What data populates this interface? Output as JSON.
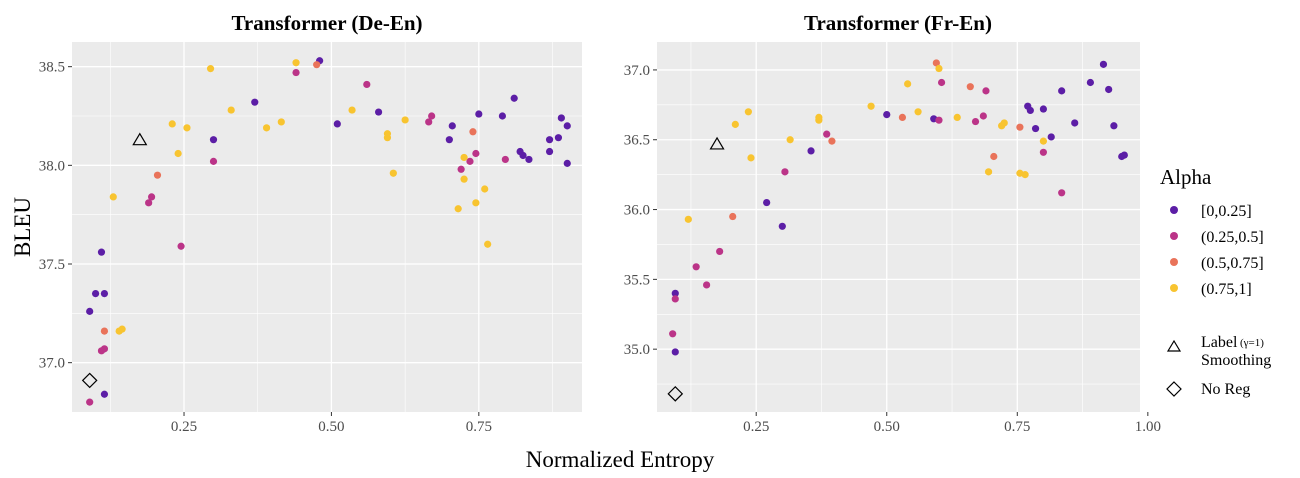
{
  "chart_data": [
    {
      "type": "scatter",
      "title": "Transformer (De-En)",
      "xlim": [
        0.06,
        0.925
      ],
      "ylim": [
        36.75,
        38.625
      ],
      "x_ticks": [
        0.25,
        0.5,
        0.75
      ],
      "x_tick_labels": [
        "0.25",
        "0.50",
        "0.75"
      ],
      "y_ticks": [
        37.0,
        37.5,
        38.0,
        38.5
      ],
      "y_tick_labels": [
        "37.0",
        "37.5",
        "38.0",
        "38.5"
      ],
      "grid": true,
      "series": [
        {
          "name": "[0,0.25]",
          "points": [
            [
              0.09,
              37.26
            ],
            [
              0.1,
              37.35
            ],
            [
              0.11,
              37.56
            ],
            [
              0.115,
              37.35
            ],
            [
              0.115,
              36.84
            ],
            [
              0.3,
              38.13
            ],
            [
              0.37,
              38.32
            ],
            [
              0.48,
              38.53
            ],
            [
              0.51,
              38.21
            ],
            [
              0.58,
              38.27
            ],
            [
              0.7,
              38.13
            ],
            [
              0.705,
              38.2
            ],
            [
              0.75,
              38.26
            ],
            [
              0.79,
              38.25
            ],
            [
              0.81,
              38.34
            ],
            [
              0.82,
              38.07
            ],
            [
              0.825,
              38.05
            ],
            [
              0.835,
              38.03
            ],
            [
              0.87,
              38.13
            ],
            [
              0.87,
              38.07
            ],
            [
              0.885,
              38.14
            ],
            [
              0.89,
              38.24
            ],
            [
              0.9,
              38.2
            ],
            [
              0.9,
              38.01
            ]
          ]
        },
        {
          "name": "(0.25,0.5]",
          "points": [
            [
              0.09,
              36.8
            ],
            [
              0.11,
              37.06
            ],
            [
              0.115,
              37.07
            ],
            [
              0.19,
              37.81
            ],
            [
              0.195,
              37.84
            ],
            [
              0.245,
              37.59
            ],
            [
              0.3,
              38.02
            ],
            [
              0.44,
              38.47
            ],
            [
              0.56,
              38.41
            ],
            [
              0.665,
              38.22
            ],
            [
              0.67,
              38.25
            ],
            [
              0.72,
              37.98
            ],
            [
              0.735,
              38.02
            ],
            [
              0.745,
              38.06
            ],
            [
              0.795,
              38.03
            ]
          ]
        },
        {
          "name": "(0.5,0.75]",
          "points": [
            [
              0.115,
              37.16
            ],
            [
              0.205,
              37.95
            ],
            [
              0.475,
              38.51
            ],
            [
              0.74,
              38.17
            ]
          ]
        },
        {
          "name": "(0.75,1]",
          "points": [
            [
              0.13,
              37.84
            ],
            [
              0.14,
              37.16
            ],
            [
              0.145,
              37.17
            ],
            [
              0.23,
              38.21
            ],
            [
              0.24,
              38.06
            ],
            [
              0.255,
              38.19
            ],
            [
              0.295,
              38.49
            ],
            [
              0.33,
              38.28
            ],
            [
              0.39,
              38.19
            ],
            [
              0.415,
              38.22
            ],
            [
              0.44,
              38.52
            ],
            [
              0.535,
              38.28
            ],
            [
              0.595,
              38.14
            ],
            [
              0.595,
              38.16
            ],
            [
              0.605,
              37.96
            ],
            [
              0.625,
              38.23
            ],
            [
              0.715,
              37.78
            ],
            [
              0.725,
              37.93
            ],
            [
              0.725,
              38.04
            ],
            [
              0.745,
              37.81
            ],
            [
              0.76,
              37.88
            ],
            [
              0.765,
              37.6
            ]
          ]
        }
      ],
      "special_points": [
        {
          "name": "Label Smoothing",
          "marker": "triangle",
          "x": 0.175,
          "y": 38.13
        },
        {
          "name": "No Reg",
          "marker": "diamond",
          "x": 0.09,
          "y": 36.91
        }
      ]
    },
    {
      "type": "scatter",
      "title": "Transformer (Fr-En)",
      "xlim": [
        0.06,
        0.985
      ],
      "ylim": [
        34.55,
        37.2
      ],
      "x_ticks": [
        0.25,
        0.5,
        0.75,
        1.0
      ],
      "x_tick_labels": [
        "0.25",
        "0.50",
        "0.75",
        "1.00"
      ],
      "y_ticks": [
        35.0,
        35.5,
        36.0,
        36.5,
        37.0
      ],
      "y_tick_labels": [
        "35.0",
        "35.5",
        "36.0",
        "36.5",
        "37.0"
      ],
      "grid": true,
      "series": [
        {
          "name": "[0,0.25]",
          "points": [
            [
              0.095,
              35.4
            ],
            [
              0.095,
              34.98
            ],
            [
              0.27,
              36.05
            ],
            [
              0.3,
              35.88
            ],
            [
              0.355,
              36.42
            ],
            [
              0.5,
              36.68
            ],
            [
              0.59,
              36.65
            ],
            [
              0.77,
              36.74
            ],
            [
              0.775,
              36.71
            ],
            [
              0.785,
              36.58
            ],
            [
              0.8,
              36.72
            ],
            [
              0.815,
              36.52
            ],
            [
              0.835,
              36.85
            ],
            [
              0.86,
              36.62
            ],
            [
              0.89,
              36.91
            ],
            [
              0.915,
              37.04
            ],
            [
              0.925,
              36.86
            ],
            [
              0.935,
              36.6
            ],
            [
              0.95,
              36.38
            ],
            [
              0.955,
              36.39
            ]
          ]
        },
        {
          "name": "(0.25,0.5]",
          "points": [
            [
              0.09,
              35.11
            ],
            [
              0.095,
              35.36
            ],
            [
              0.135,
              35.59
            ],
            [
              0.155,
              35.46
            ],
            [
              0.18,
              35.7
            ],
            [
              0.305,
              36.27
            ],
            [
              0.385,
              36.54
            ],
            [
              0.6,
              36.64
            ],
            [
              0.605,
              36.91
            ],
            [
              0.67,
              36.63
            ],
            [
              0.685,
              36.67
            ],
            [
              0.69,
              36.85
            ],
            [
              0.8,
              36.41
            ],
            [
              0.835,
              36.12
            ]
          ]
        },
        {
          "name": "(0.5,0.75]",
          "points": [
            [
              0.205,
              35.95
            ],
            [
              0.395,
              36.49
            ],
            [
              0.53,
              36.66
            ],
            [
              0.595,
              37.05
            ],
            [
              0.66,
              36.88
            ],
            [
              0.705,
              36.38
            ],
            [
              0.755,
              36.59
            ]
          ]
        },
        {
          "name": "(0.75,1]",
          "points": [
            [
              0.12,
              35.93
            ],
            [
              0.21,
              36.61
            ],
            [
              0.235,
              36.7
            ],
            [
              0.24,
              36.37
            ],
            [
              0.315,
              36.5
            ],
            [
              0.37,
              36.64
            ],
            [
              0.37,
              36.66
            ],
            [
              0.47,
              36.74
            ],
            [
              0.54,
              36.9
            ],
            [
              0.56,
              36.7
            ],
            [
              0.6,
              37.01
            ],
            [
              0.635,
              36.66
            ],
            [
              0.695,
              36.27
            ],
            [
              0.72,
              36.6
            ],
            [
              0.725,
              36.62
            ],
            [
              0.755,
              36.26
            ],
            [
              0.765,
              36.25
            ],
            [
              0.8,
              36.49
            ]
          ]
        }
      ],
      "special_points": [
        {
          "name": "Label Smoothing",
          "marker": "triangle",
          "x": 0.175,
          "y": 36.47
        },
        {
          "name": "No Reg",
          "marker": "diamond",
          "x": 0.095,
          "y": 34.68
        }
      ]
    }
  ],
  "axes": {
    "xlabel": "Normalized Entropy",
    "ylabel": "BLEU"
  },
  "legend": {
    "title": "Alpha",
    "placement": "right",
    "entries": [
      {
        "label": "[0,0.25]",
        "color": "#5c1ea6"
      },
      {
        "label": "(0.25,0.5]",
        "color": "#bb3488"
      },
      {
        "label": "(0.5,0.75]",
        "color": "#e9735a"
      },
      {
        "label": "(0.75,1]",
        "color": "#f8c430"
      }
    ],
    "shape_entries": [
      {
        "marker": "triangle",
        "label_line1": "Label",
        "label_line1_note": "(γ=1)",
        "label_line2": "Smoothing"
      },
      {
        "marker": "diamond",
        "label": "No Reg"
      }
    ]
  },
  "colors": {
    "panel_bg": "#ebebeb",
    "grid": "#ffffff"
  }
}
